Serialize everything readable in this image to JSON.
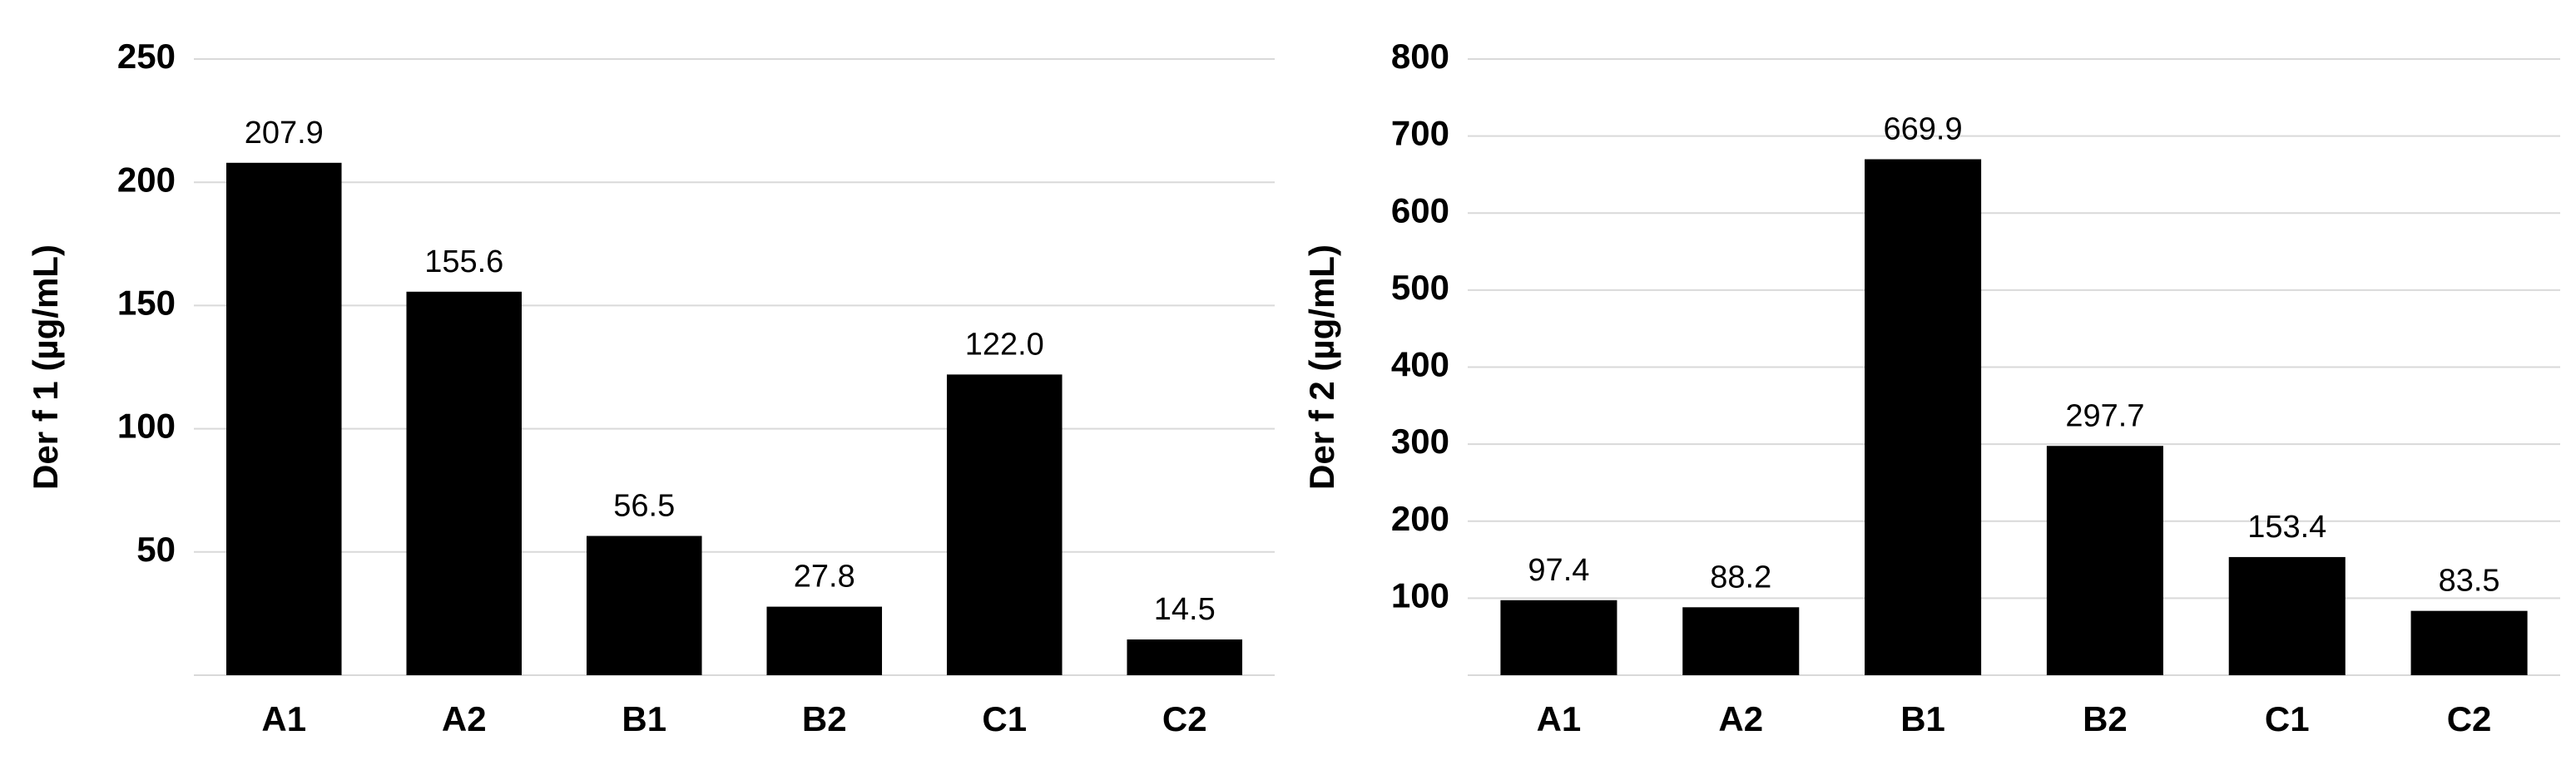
{
  "chart_data": [
    {
      "type": "bar",
      "y_label": "Der f 1 (µg/mL)",
      "categories": [
        "A1",
        "A2",
        "B1",
        "B2",
        "C1",
        "C2"
      ],
      "values": [
        207.9,
        155.6,
        56.5,
        27.8,
        122.0,
        14.5
      ],
      "value_labels": [
        "207.9",
        "155.6",
        "56.5",
        "27.8",
        "122.0",
        "14.5"
      ],
      "color": "#000000",
      "ylim": [
        0,
        250
      ],
      "yticks": [
        50,
        100,
        150,
        200,
        250
      ],
      "grid": true
    },
    {
      "type": "bar",
      "y_label": "Der f 2 (µg/mL)",
      "categories": [
        "A1",
        "A2",
        "B1",
        "B2",
        "C1",
        "C2"
      ],
      "values": [
        97.4,
        88.2,
        669.9,
        297.7,
        153.4,
        83.5
      ],
      "value_labels": [
        "97.4",
        "88.2",
        "669.9",
        "297.7",
        "153.4",
        "83.5"
      ],
      "color": "#000000",
      "ylim": [
        0,
        800
      ],
      "yticks": [
        100,
        200,
        300,
        400,
        500,
        600,
        700,
        800
      ],
      "grid": true
    }
  ]
}
